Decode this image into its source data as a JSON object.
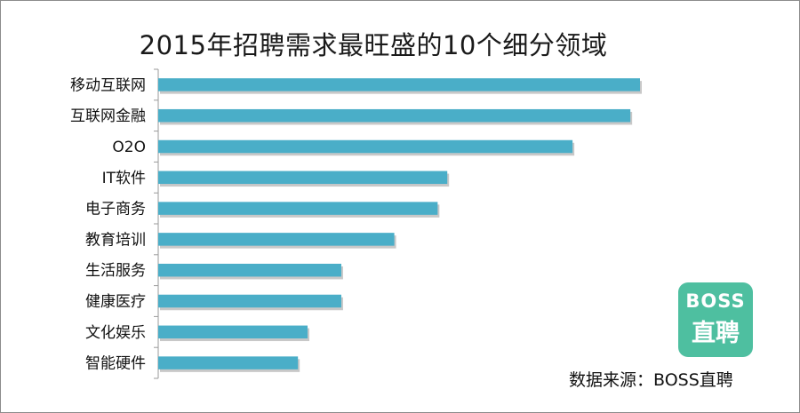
{
  "chart_data": {
    "type": "bar",
    "orientation": "horizontal",
    "title": "2015年招聘需求最旺盛的10个细分领域",
    "categories": [
      "移动互联网",
      "互联网金融",
      "O2O",
      "IT软件",
      "电子商务",
      "教育培训",
      "生活服务",
      "健康医疗",
      "文化娱乐",
      "智能硬件"
    ],
    "values": [
      100,
      98,
      86,
      60,
      58,
      49,
      38,
      38,
      31,
      29
    ],
    "xlim": [
      0,
      100
    ],
    "grid": false,
    "bar_color": "#4aaec8"
  },
  "logo": {
    "line1": "BOSS",
    "line2": "直聘",
    "color": "#4ebfa0"
  },
  "source": "数据来源：BOSS直聘"
}
